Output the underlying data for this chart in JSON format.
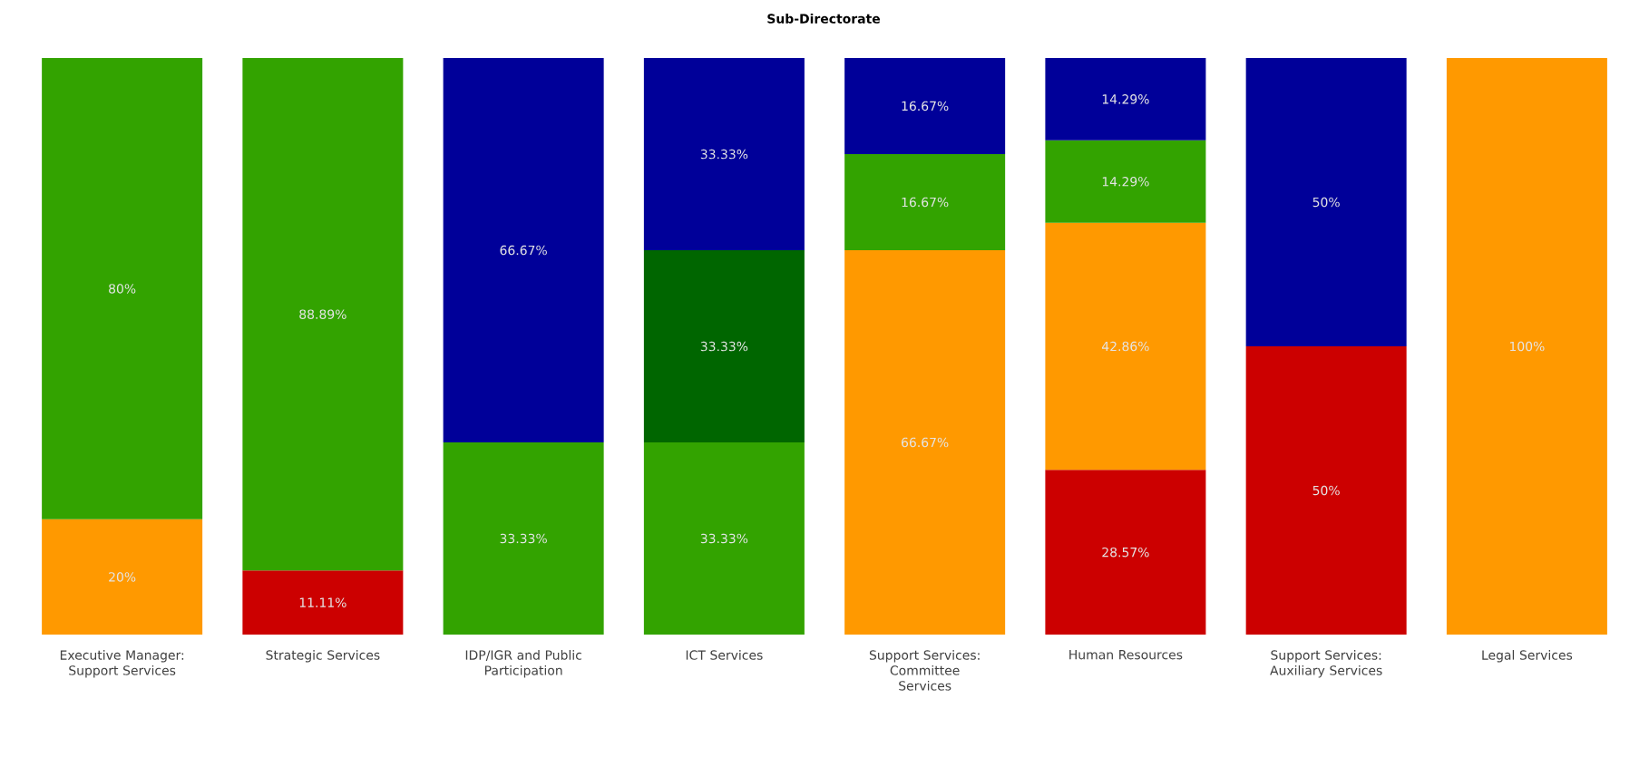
{
  "chart_data": {
    "type": "bar",
    "stacked": true,
    "title": "Sub-Directorate",
    "categories": [
      "Executive Manager: Support Services",
      "Strategic Services",
      "IDP/IGR and Public Participation",
      "ICT Services",
      "Support Services: Committee Services",
      "Human Resources",
      "Support Services: Auxiliary Services",
      "Legal Services"
    ],
    "ylim": [
      0,
      100
    ],
    "series": [
      {
        "color": "#cc0000",
        "values": [
          null,
          11.11,
          null,
          null,
          null,
          28.57,
          50,
          null
        ],
        "value_labels": [
          null,
          "11.11%",
          null,
          null,
          null,
          "28.57%",
          "50%",
          null
        ]
      },
      {
        "color": "#ff9900",
        "values": [
          20,
          null,
          null,
          null,
          66.67,
          42.86,
          null,
          100
        ],
        "value_labels": [
          "20%",
          null,
          null,
          null,
          "66.67%",
          "42.86%",
          null,
          "100%"
        ]
      },
      {
        "color": "#33a300",
        "values": [
          80,
          88.89,
          33.33,
          33.33,
          16.67,
          14.29,
          null,
          null
        ],
        "value_labels": [
          "80%",
          "88.89%",
          "33.33%",
          "33.33%",
          "16.67%",
          "14.29%",
          null,
          null
        ]
      },
      {
        "color": "#006600",
        "values": [
          null,
          null,
          null,
          33.33,
          null,
          null,
          null,
          null
        ],
        "value_labels": [
          null,
          null,
          null,
          "33.33%",
          null,
          null,
          null,
          null
        ]
      },
      {
        "color": "#000099",
        "values": [
          null,
          null,
          66.67,
          33.33,
          16.67,
          14.29,
          50,
          null
        ],
        "value_labels": [
          null,
          null,
          "66.67%",
          "33.33%",
          "16.67%",
          "14.29%",
          "50%",
          null
        ]
      }
    ]
  }
}
